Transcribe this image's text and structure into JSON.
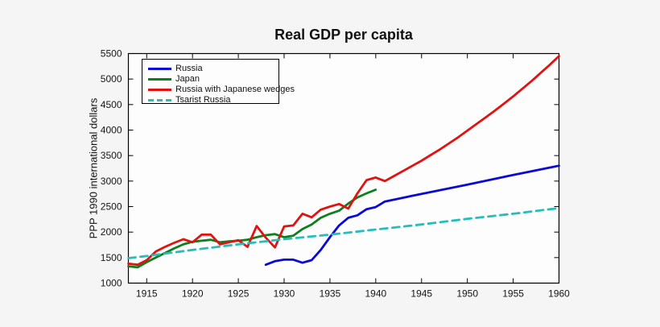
{
  "chart_data": {
    "type": "line",
    "title": "Real GDP per capita",
    "xlabel": "",
    "ylabel": "PPP 1990 international dollars",
    "xlim": [
      1913,
      1960
    ],
    "ylim": [
      1000,
      5500
    ],
    "xticks": [
      1915,
      1920,
      1925,
      1930,
      1935,
      1940,
      1945,
      1950,
      1955,
      1960
    ],
    "yticks": [
      1000,
      1500,
      2000,
      2500,
      3000,
      3500,
      4000,
      4500,
      5000,
      5500
    ],
    "grid": false,
    "legend_position": "top-left",
    "figure_background": "#f5f5f6",
    "plot_background": "#fdfdfd",
    "axis_color": "#000000",
    "series": [
      {
        "name": "Russia",
        "color": "#0a0ad8",
        "style": "solid",
        "points": [
          [
            1928,
            1360
          ],
          [
            1929,
            1430
          ],
          [
            1930,
            1460
          ],
          [
            1931,
            1460
          ],
          [
            1932,
            1400
          ],
          [
            1933,
            1450
          ],
          [
            1934,
            1650
          ],
          [
            1935,
            1900
          ],
          [
            1936,
            2130
          ],
          [
            1937,
            2280
          ],
          [
            1938,
            2330
          ],
          [
            1939,
            2450
          ],
          [
            1940,
            2490
          ],
          [
            1941,
            2600
          ],
          [
            1945,
            2750
          ],
          [
            1950,
            2930
          ],
          [
            1955,
            3120
          ],
          [
            1960,
            3300
          ]
        ]
      },
      {
        "name": "Japan",
        "color": "#0d7f1c",
        "style": "solid",
        "points": [
          [
            1913,
            1330
          ],
          [
            1914,
            1310
          ],
          [
            1915,
            1410
          ],
          [
            1916,
            1500
          ],
          [
            1917,
            1590
          ],
          [
            1918,
            1680
          ],
          [
            1919,
            1760
          ],
          [
            1920,
            1810
          ],
          [
            1921,
            1830
          ],
          [
            1922,
            1850
          ],
          [
            1923,
            1800
          ],
          [
            1924,
            1820
          ],
          [
            1925,
            1830
          ],
          [
            1926,
            1850
          ],
          [
            1927,
            1900
          ],
          [
            1928,
            1940
          ],
          [
            1929,
            1960
          ],
          [
            1930,
            1900
          ],
          [
            1931,
            1930
          ],
          [
            1932,
            2060
          ],
          [
            1933,
            2150
          ],
          [
            1934,
            2280
          ],
          [
            1935,
            2360
          ],
          [
            1936,
            2420
          ],
          [
            1937,
            2560
          ],
          [
            1938,
            2680
          ],
          [
            1939,
            2760
          ],
          [
            1940,
            2830
          ]
        ]
      },
      {
        "name": "Russia with Japanese wedges",
        "color": "#e01310",
        "style": "solid",
        "points": [
          [
            1913,
            1380
          ],
          [
            1914,
            1360
          ],
          [
            1915,
            1450
          ],
          [
            1916,
            1620
          ],
          [
            1917,
            1710
          ],
          [
            1918,
            1790
          ],
          [
            1919,
            1860
          ],
          [
            1920,
            1800
          ],
          [
            1921,
            1950
          ],
          [
            1922,
            1950
          ],
          [
            1923,
            1760
          ],
          [
            1924,
            1800
          ],
          [
            1925,
            1840
          ],
          [
            1926,
            1710
          ],
          [
            1927,
            2120
          ],
          [
            1928,
            1890
          ],
          [
            1929,
            1700
          ],
          [
            1930,
            2110
          ],
          [
            1931,
            2130
          ],
          [
            1932,
            2360
          ],
          [
            1933,
            2290
          ],
          [
            1934,
            2440
          ],
          [
            1935,
            2500
          ],
          [
            1936,
            2550
          ],
          [
            1937,
            2460
          ],
          [
            1938,
            2760
          ],
          [
            1939,
            3020
          ],
          [
            1940,
            3070
          ],
          [
            1941,
            3000
          ],
          [
            1942,
            3100
          ],
          [
            1943,
            3200
          ],
          [
            1944,
            3300
          ],
          [
            1945,
            3400
          ],
          [
            1946,
            3510
          ],
          [
            1947,
            3620
          ],
          [
            1948,
            3740
          ],
          [
            1949,
            3860
          ],
          [
            1950,
            3990
          ],
          [
            1951,
            4120
          ],
          [
            1952,
            4250
          ],
          [
            1953,
            4380
          ],
          [
            1954,
            4520
          ],
          [
            1955,
            4660
          ],
          [
            1956,
            4810
          ],
          [
            1957,
            4960
          ],
          [
            1958,
            5120
          ],
          [
            1959,
            5280
          ],
          [
            1960,
            5450
          ]
        ]
      },
      {
        "name": "Tsarist Russia",
        "color": "#28bcbc",
        "style": "dashed",
        "points": [
          [
            1913,
            1490
          ],
          [
            1915,
            1530
          ],
          [
            1920,
            1650
          ],
          [
            1925,
            1760
          ],
          [
            1930,
            1860
          ],
          [
            1935,
            1950
          ],
          [
            1940,
            2050
          ],
          [
            1945,
            2150
          ],
          [
            1950,
            2260
          ],
          [
            1955,
            2360
          ],
          [
            1960,
            2470
          ]
        ]
      }
    ]
  }
}
